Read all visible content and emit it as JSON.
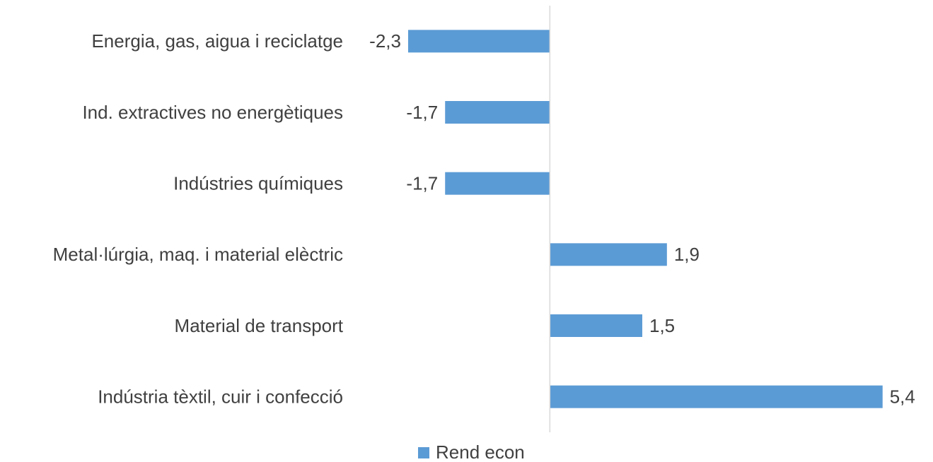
{
  "chart_data": {
    "type": "bar",
    "orientation": "horizontal",
    "categories": [
      "Energia, gas, aigua i reciclatge",
      "Ind. extractives no energètiques",
      "Indústries químiques",
      "Metal·lúrgia, maq. i material elèctric",
      "Material de transport",
      "Indústria tèxtil, cuir i confecció"
    ],
    "series": [
      {
        "name": "Rend econ",
        "color": "#5b9bd5",
        "values": [
          -2.3,
          -1.7,
          -1.7,
          1.9,
          1.5,
          5.4
        ],
        "value_labels": [
          "-2,3",
          "-1,7",
          "-1,7",
          "1,9",
          "1,5",
          "5,4"
        ]
      }
    ],
    "xlim": [
      -3,
      6
    ],
    "legend": "bottom"
  }
}
